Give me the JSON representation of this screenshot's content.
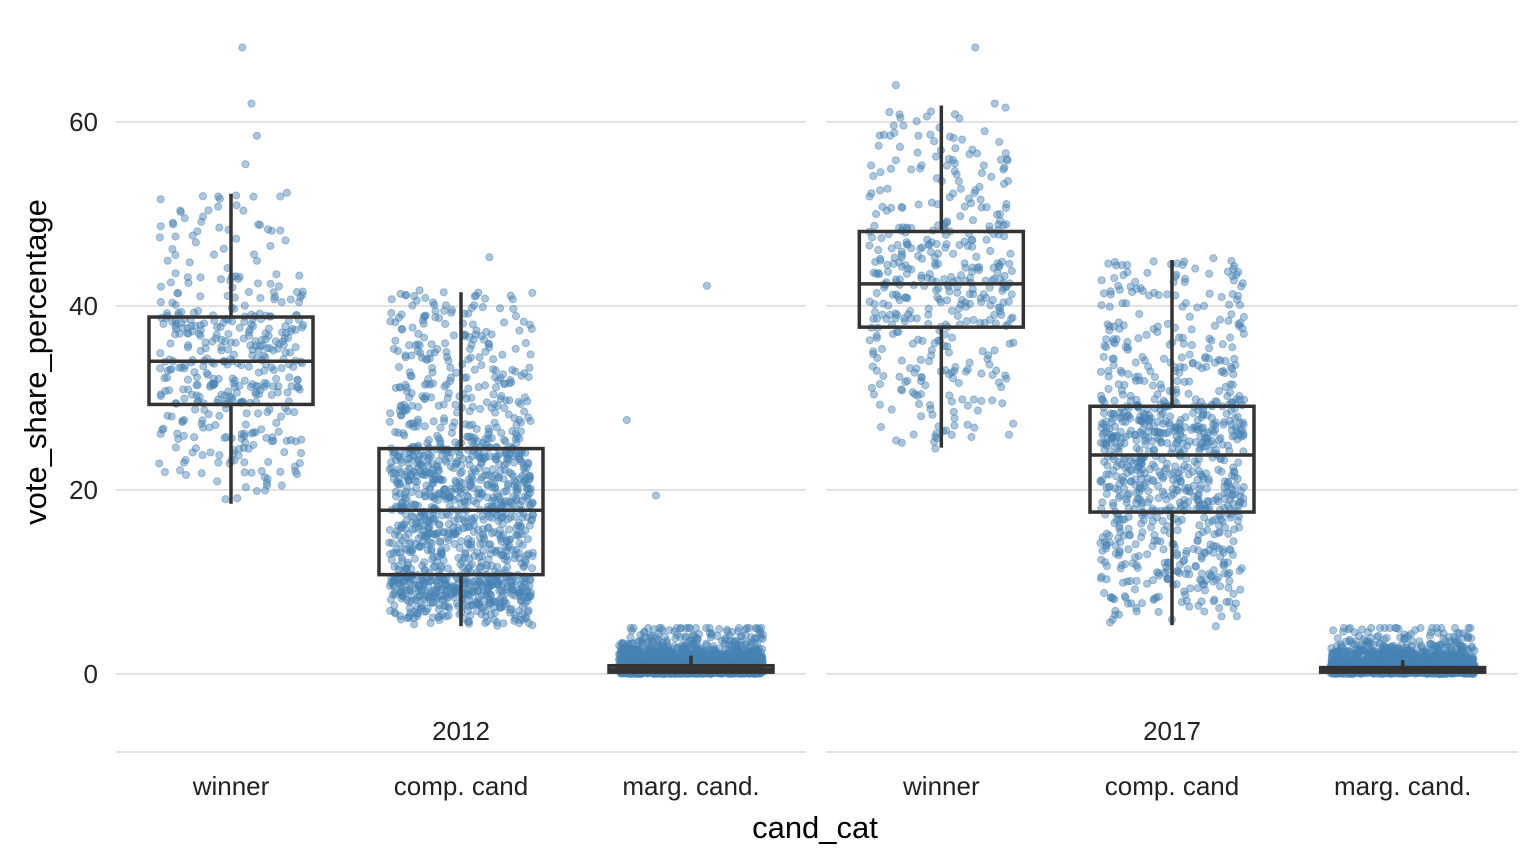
{
  "chart_data": {
    "type": "boxplot",
    "xlabel": "cand_cat",
    "ylabel": "vote_share_percentage",
    "ylim": [
      -9,
      70
    ],
    "yticks": [
      0,
      20,
      40,
      60
    ],
    "categories": [
      "winner",
      "comp. cand",
      "marg. cand."
    ],
    "grid": "horizontal major gridlines",
    "point_color": "#4682B4",
    "box_color": "#333333",
    "panels": [
      {
        "label": "2012",
        "boxes": [
          {
            "category": "winner",
            "whisker_low": 18.5,
            "q1": 29.3,
            "median": 34.0,
            "q3": 38.8,
            "whisker_high": 52.2,
            "outliers": [],
            "point_count": 420,
            "extreme_points": [
              68.1,
              62.0,
              58.5,
              55.4,
              52.3,
              51.6,
              19.0
            ]
          },
          {
            "category": "comp. cand",
            "whisker_low": 5.2,
            "q1": 10.8,
            "median": 17.8,
            "q3": 24.5,
            "whisker_high": 41.5,
            "outliers": [],
            "point_count": 1300,
            "extreme_points": [
              45.3,
              41.7,
              39.8,
              38.9,
              5.3
            ]
          },
          {
            "category": "marg. cand.",
            "whisker_low": 0,
            "q1": 0.2,
            "median": 0.5,
            "q3": 0.9,
            "whisker_high": 2.0,
            "outliers": [
              42.2,
              27.6,
              19.4
            ],
            "point_count": 1800,
            "extreme_points": [
              5.0,
              0.0
            ]
          }
        ]
      },
      {
        "label": "2017",
        "boxes": [
          {
            "category": "winner",
            "whisker_low": 24.6,
            "q1": 37.7,
            "median": 42.4,
            "q3": 48.1,
            "whisker_high": 61.8,
            "outliers": [],
            "point_count": 420,
            "extreme_points": [
              68.1,
              64.0,
              62.0,
              58.5,
              56.5,
              55.9,
              27.0,
              24.5
            ]
          },
          {
            "category": "comp. cand",
            "whisker_low": 5.3,
            "q1": 17.6,
            "median": 23.8,
            "q3": 29.1,
            "whisker_high": 45.0,
            "outliers": [],
            "point_count": 900,
            "extreme_points": [
              45.2,
              44.6,
              43.5,
              5.2
            ]
          },
          {
            "category": "marg. cand.",
            "whisker_low": 0,
            "q1": 0.2,
            "median": 0.4,
            "q3": 0.7,
            "whisker_high": 1.5,
            "outliers": [],
            "point_count": 1300,
            "extreme_points": [
              5.0,
              0.0
            ]
          }
        ]
      }
    ]
  }
}
